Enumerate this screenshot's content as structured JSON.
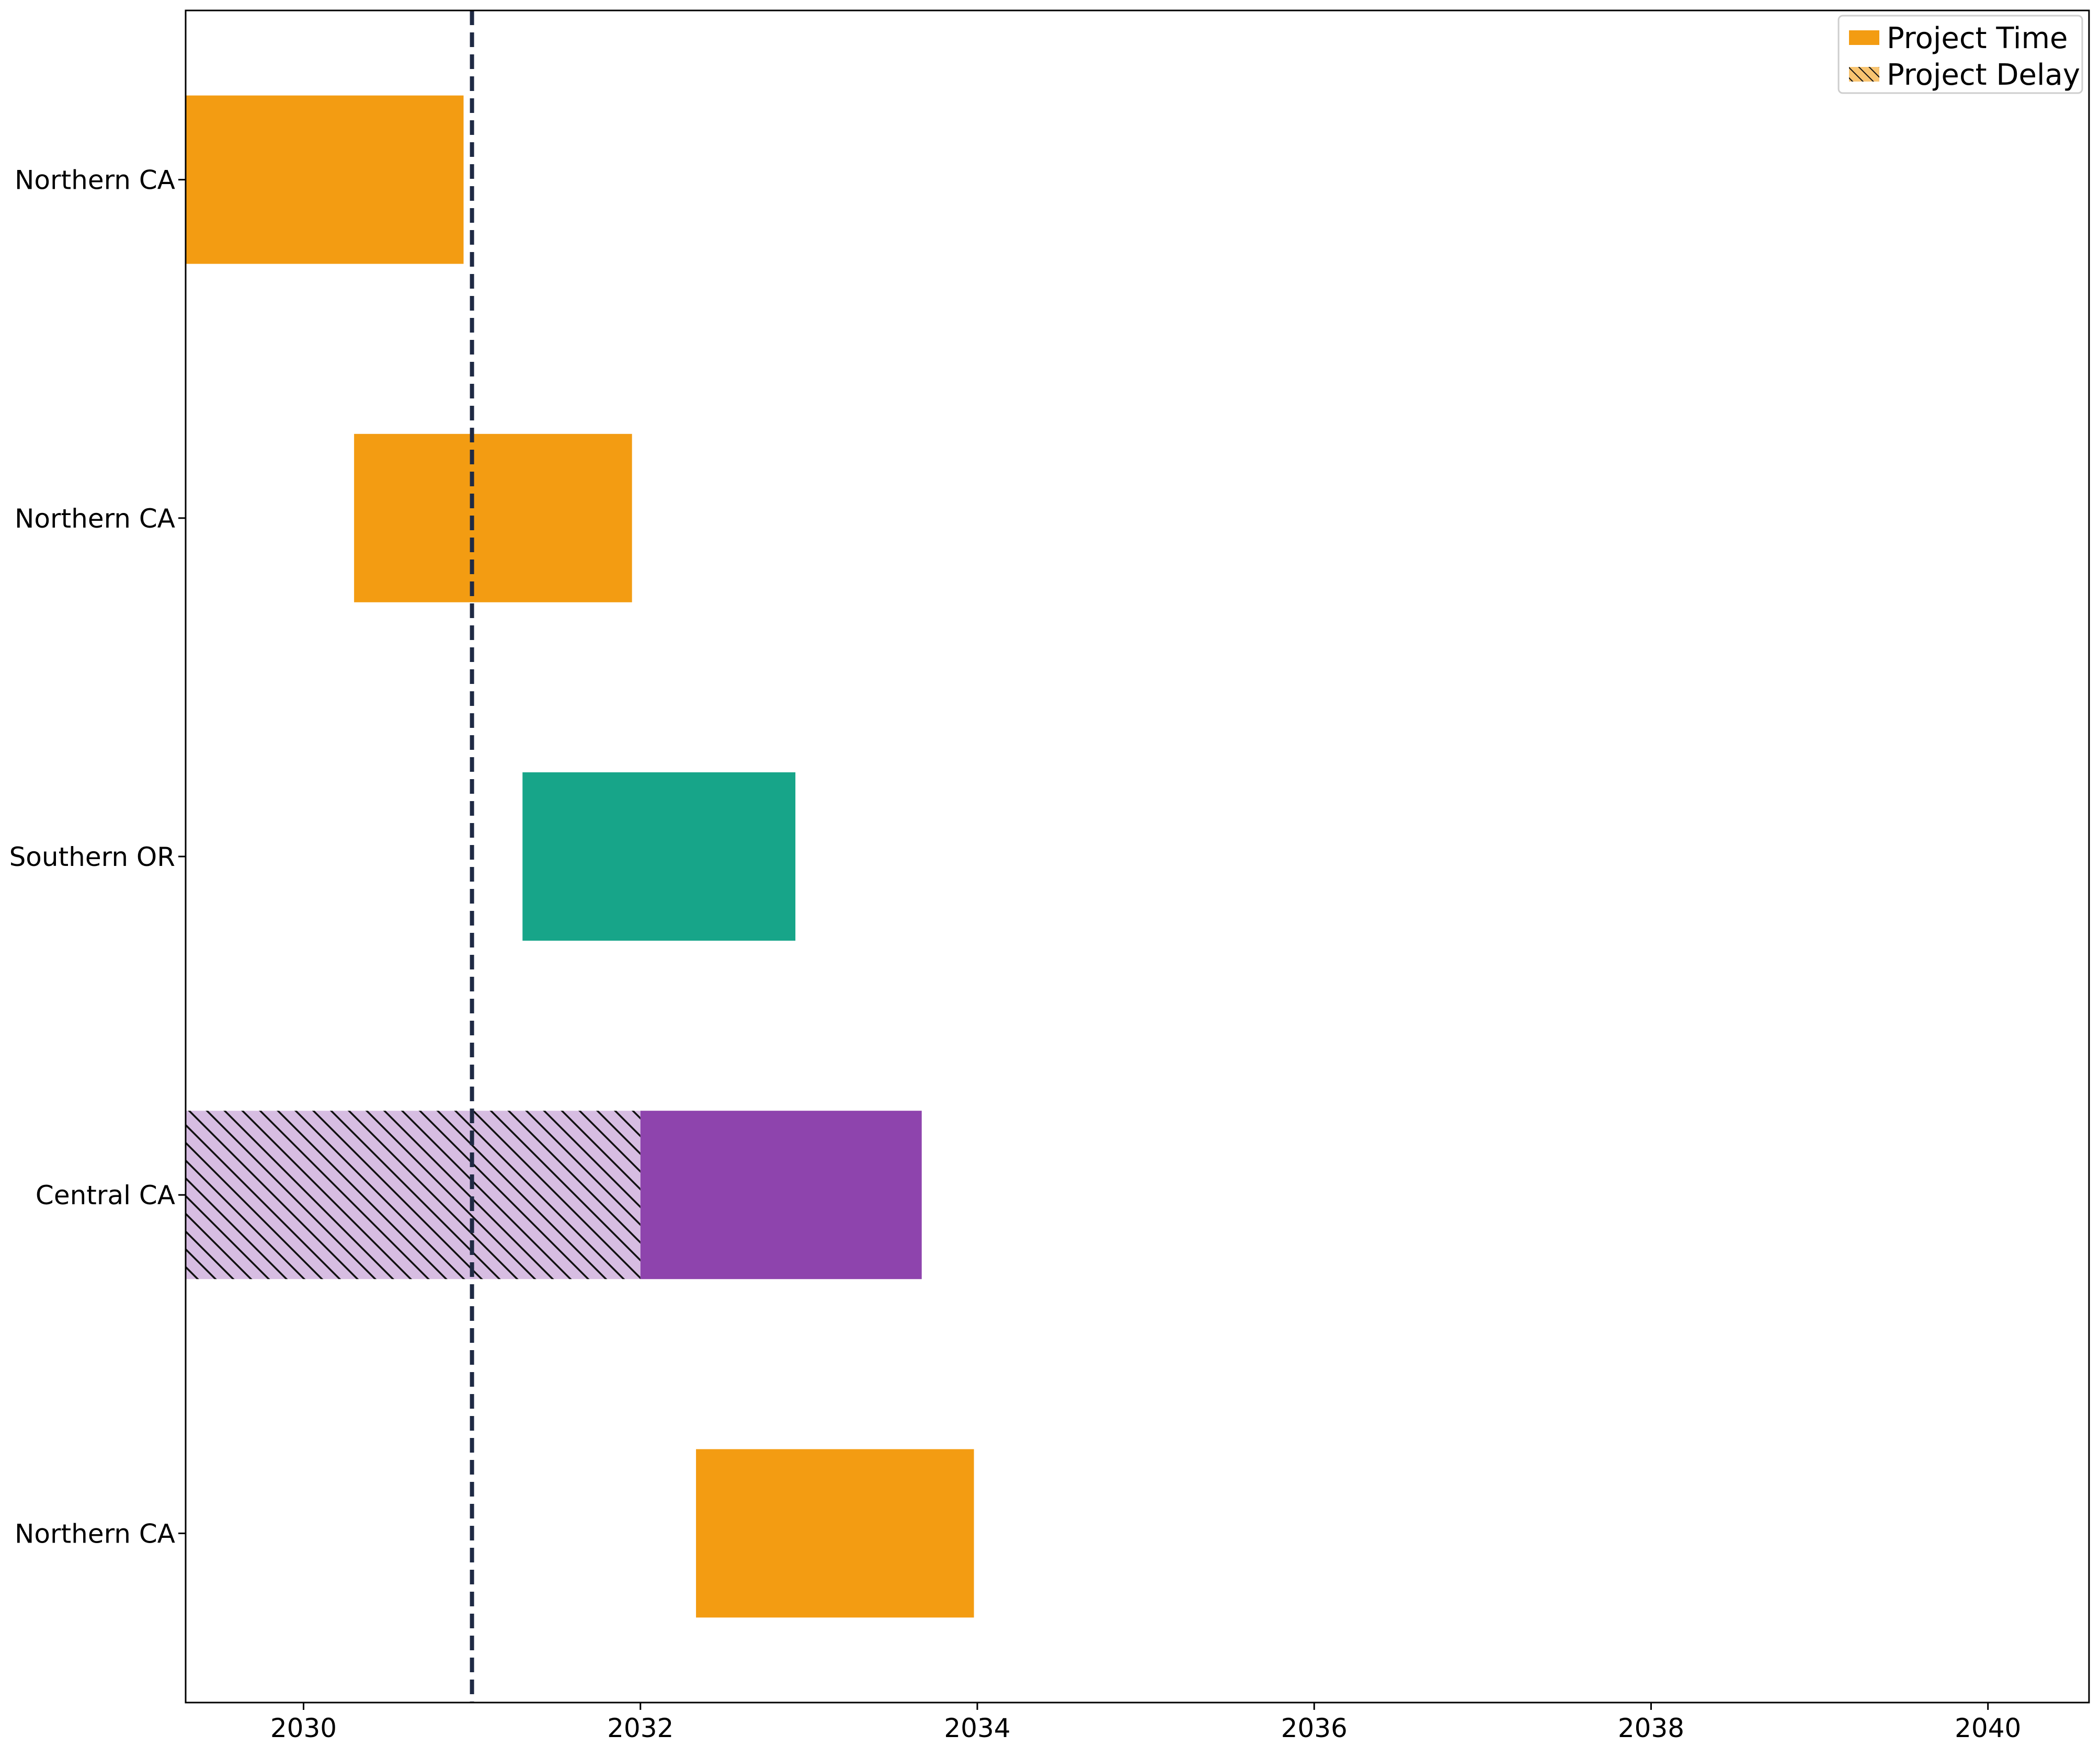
{
  "chart_data": {
    "type": "gantt",
    "title": "",
    "xlabel": "",
    "ylabel": "",
    "xlim": [
      2029.3,
      2040.6
    ],
    "xticks": [
      2030,
      2032,
      2034,
      2036,
      2038,
      2040
    ],
    "grid": false,
    "reference_line": {
      "x": 2031.0,
      "style": "dashed",
      "color": "#1f2a44"
    },
    "legend": {
      "placement": "top-right",
      "entries": [
        {
          "label": "Project Time",
          "fill": "solid",
          "color": "#f39c12"
        },
        {
          "label": "Project Delay",
          "fill": "hatched",
          "color": "#f39c12"
        }
      ]
    },
    "rows": [
      {
        "label": "Northern CA",
        "bars": [
          {
            "start": 2029.3,
            "end": 2030.95,
            "kind": "time",
            "color": "#f39c12"
          }
        ]
      },
      {
        "label": "Northern CA",
        "bars": [
          {
            "start": 2030.3,
            "end": 2031.95,
            "kind": "time",
            "color": "#f39c12"
          }
        ]
      },
      {
        "label": "Southern OR",
        "bars": [
          {
            "start": 2031.3,
            "end": 2032.92,
            "kind": "time",
            "color": "#17a589"
          }
        ]
      },
      {
        "label": "Central CA",
        "bars": [
          {
            "start": 2029.3,
            "end": 2032.0,
            "kind": "delay",
            "color": "#8e44ad"
          },
          {
            "start": 2032.0,
            "end": 2033.67,
            "kind": "time",
            "color": "#8e44ad"
          }
        ]
      },
      {
        "label": "Northern CA",
        "bars": [
          {
            "start": 2032.33,
            "end": 2033.98,
            "kind": "time",
            "color": "#f39c12"
          }
        ]
      }
    ]
  }
}
